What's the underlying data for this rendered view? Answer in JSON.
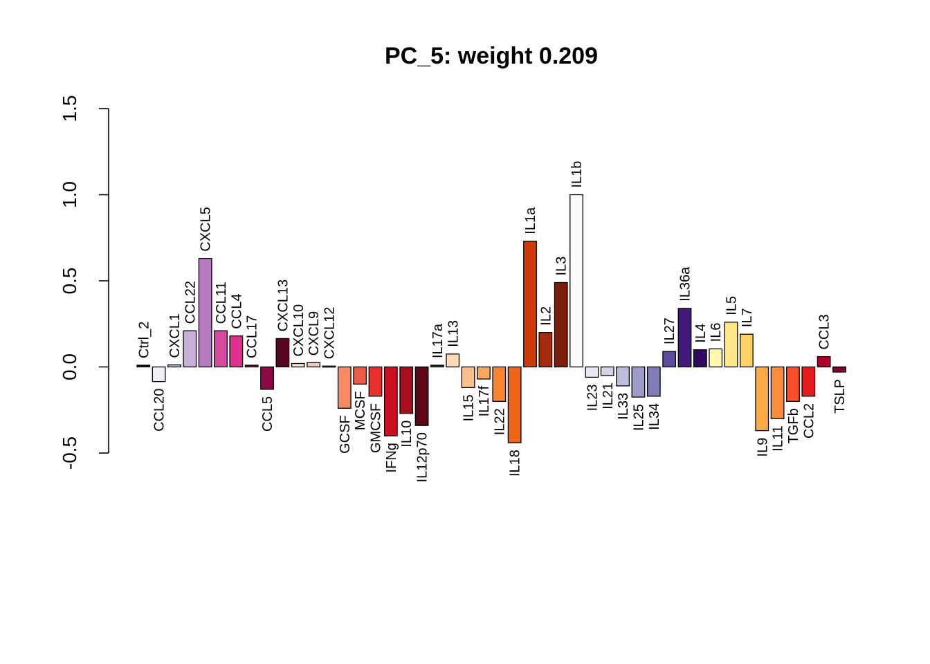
{
  "chart_data": {
    "type": "bar",
    "title": "PC_5: weight 0.209",
    "xlabel": "",
    "ylabel": "",
    "ylim": [
      -0.5,
      1.5
    ],
    "yticks": [
      "-0.5",
      "0.0",
      "0.5",
      "1.0",
      "1.5"
    ],
    "grid": false,
    "legend": "none",
    "categories": [
      "Ctrl_2",
      "CCL20",
      "CXCL1",
      "CCL22",
      "CXCL5",
      "CCL11",
      "CCL4",
      "CCL17",
      "CCL5",
      "CXCL13",
      "CXCL10",
      "CXCL9",
      "CXCL12",
      "GCSF",
      "MCSF",
      "GMCSF",
      "IFNg",
      "IL10",
      "IL12p70",
      "IL17a",
      "IL13",
      "IL15",
      "IL17f",
      "IL22",
      "IL18",
      "IL1a",
      "IL2",
      "IL3",
      "IL1b",
      "IL23",
      "IL21",
      "IL33",
      "IL25",
      "IL34",
      "IL27",
      "IL36a",
      "IL4",
      "IL6",
      "IL5",
      "IL7",
      "IL9",
      "IL11",
      "TGFb",
      "CCL2",
      "CCL3",
      "TSLP"
    ],
    "values": [
      0.01,
      -0.085,
      0.012,
      0.21,
      0.63,
      0.21,
      0.18,
      0.01,
      -0.13,
      0.165,
      0.02,
      0.025,
      0.005,
      -0.24,
      -0.1,
      -0.17,
      -0.4,
      -0.27,
      -0.34,
      0.01,
      0.075,
      -0.12,
      -0.07,
      -0.2,
      -0.44,
      0.73,
      0.2,
      0.49,
      1.0,
      -0.06,
      -0.05,
      -0.11,
      -0.175,
      -0.17,
      0.09,
      0.34,
      0.1,
      0.105,
      0.26,
      0.19,
      -0.37,
      -0.3,
      -0.2,
      -0.17,
      0.06,
      -0.03
    ],
    "colors": [
      "#3a0a0a",
      "#f2f0f5",
      "#c9c9dc",
      "#c9aed6",
      "#b77cc0",
      "#d64ba0",
      "#e12f8f",
      "#a0104a",
      "#8b0a44",
      "#56071f",
      "#f7e1d8",
      "#f3c6b5",
      "#f1e6ea",
      "#f88a64",
      "#f05a44",
      "#e8312a",
      "#cc1020",
      "#a60f1d",
      "#5e0717",
      "#1f4f3a",
      "#fed9b8",
      "#fdc08c",
      "#fca863",
      "#f98430",
      "#f06418",
      "#cc3a09",
      "#a52b0c",
      "#7a1e0b",
      "#fbfbfb",
      "#e9e9f3",
      "#d4d4e8",
      "#bcbcdc",
      "#9f9bc8",
      "#7f7cb8",
      "#5d4aa3",
      "#43197e",
      "#300963",
      "#fff7b0",
      "#fee789",
      "#fed065",
      "#fdaa45",
      "#fd8c3b",
      "#fc4e2a",
      "#e41a1c",
      "#b00026",
      "#800026"
    ]
  }
}
